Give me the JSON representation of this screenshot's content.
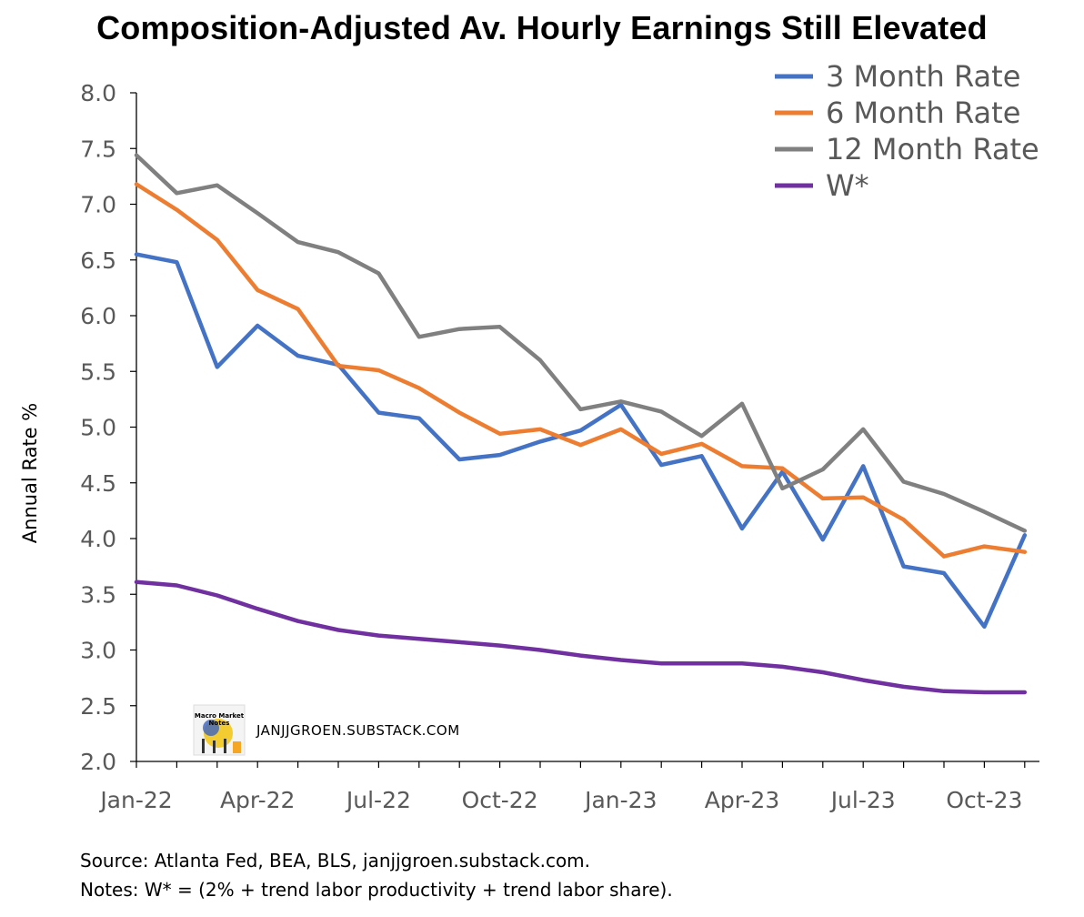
{
  "chart_data": {
    "type": "line",
    "title": "Composition-Adjusted Av. Hourly Earnings Still Elevated",
    "ylabel": "Annual Rate %",
    "xlabel": "",
    "ylim": [
      2.0,
      8.0
    ],
    "yticks": [
      "2.0",
      "2.5",
      "3.0",
      "3.5",
      "4.0",
      "4.5",
      "5.0",
      "5.5",
      "6.0",
      "6.5",
      "7.0",
      "7.5",
      "8.0"
    ],
    "x": [
      "Jan-22",
      "Feb-22",
      "Mar-22",
      "Apr-22",
      "May-22",
      "Jun-22",
      "Jul-22",
      "Aug-22",
      "Sep-22",
      "Oct-22",
      "Nov-22",
      "Dec-22",
      "Jan-23",
      "Feb-23",
      "Mar-23",
      "Apr-23",
      "May-23",
      "Jun-23",
      "Jul-23",
      "Aug-23",
      "Sep-23",
      "Oct-23",
      "Nov-23"
    ],
    "xtick_labels": [
      {
        "label": "Jan-22",
        "index": 0
      },
      {
        "label": "Apr-22",
        "index": 3
      },
      {
        "label": "Jul-22",
        "index": 6
      },
      {
        "label": "Oct-22",
        "index": 9
      },
      {
        "label": "Jan-23",
        "index": 12
      },
      {
        "label": "Apr-23",
        "index": 15
      },
      {
        "label": "Jul-23",
        "index": 18
      },
      {
        "label": "Oct-23",
        "index": 21
      }
    ],
    "grid": false,
    "legend_position": "top-right",
    "series": [
      {
        "name": "3 Month Rate",
        "color": "#4472C4",
        "values": [
          6.55,
          6.48,
          5.54,
          5.91,
          5.64,
          5.56,
          5.13,
          5.08,
          4.71,
          4.75,
          4.87,
          4.97,
          5.2,
          4.66,
          4.74,
          4.09,
          4.6,
          3.99,
          4.65,
          3.75,
          3.69,
          3.21,
          4.03
        ]
      },
      {
        "name": "6 Month Rate",
        "color": "#ED7D31",
        "values": [
          7.18,
          6.95,
          6.68,
          6.23,
          6.06,
          5.55,
          5.51,
          5.35,
          5.13,
          4.94,
          4.98,
          4.84,
          4.98,
          4.76,
          4.85,
          4.65,
          4.63,
          4.36,
          4.37,
          4.17,
          3.84,
          3.93,
          3.88
        ]
      },
      {
        "name": "12 Month Rate",
        "color": "#808080",
        "values": [
          7.44,
          7.1,
          7.17,
          6.92,
          6.66,
          6.57,
          6.38,
          5.81,
          5.88,
          5.9,
          5.6,
          5.16,
          5.23,
          5.14,
          4.92,
          5.21,
          4.45,
          4.62,
          4.98,
          4.51,
          4.4,
          4.24,
          4.07
        ]
      },
      {
        "name": "W*",
        "color": "#7030A0",
        "values": [
          3.61,
          3.58,
          3.49,
          3.37,
          3.26,
          3.18,
          3.13,
          3.1,
          3.07,
          3.04,
          3.0,
          2.95,
          2.91,
          2.88,
          2.88,
          2.88,
          2.85,
          2.8,
          2.73,
          2.67,
          2.63,
          2.62,
          2.62
        ]
      }
    ]
  },
  "watermark": {
    "logo_text": [
      "Macro Market",
      "Notes"
    ],
    "text": "JANJJGROEN.SUBSTACK.COM"
  },
  "footer": {
    "source": "Source: Atlanta Fed, BEA, BLS, janjjgroen.substack.com.",
    "notes": "Notes: W* = (2% + trend labor productivity + trend labor share)."
  }
}
